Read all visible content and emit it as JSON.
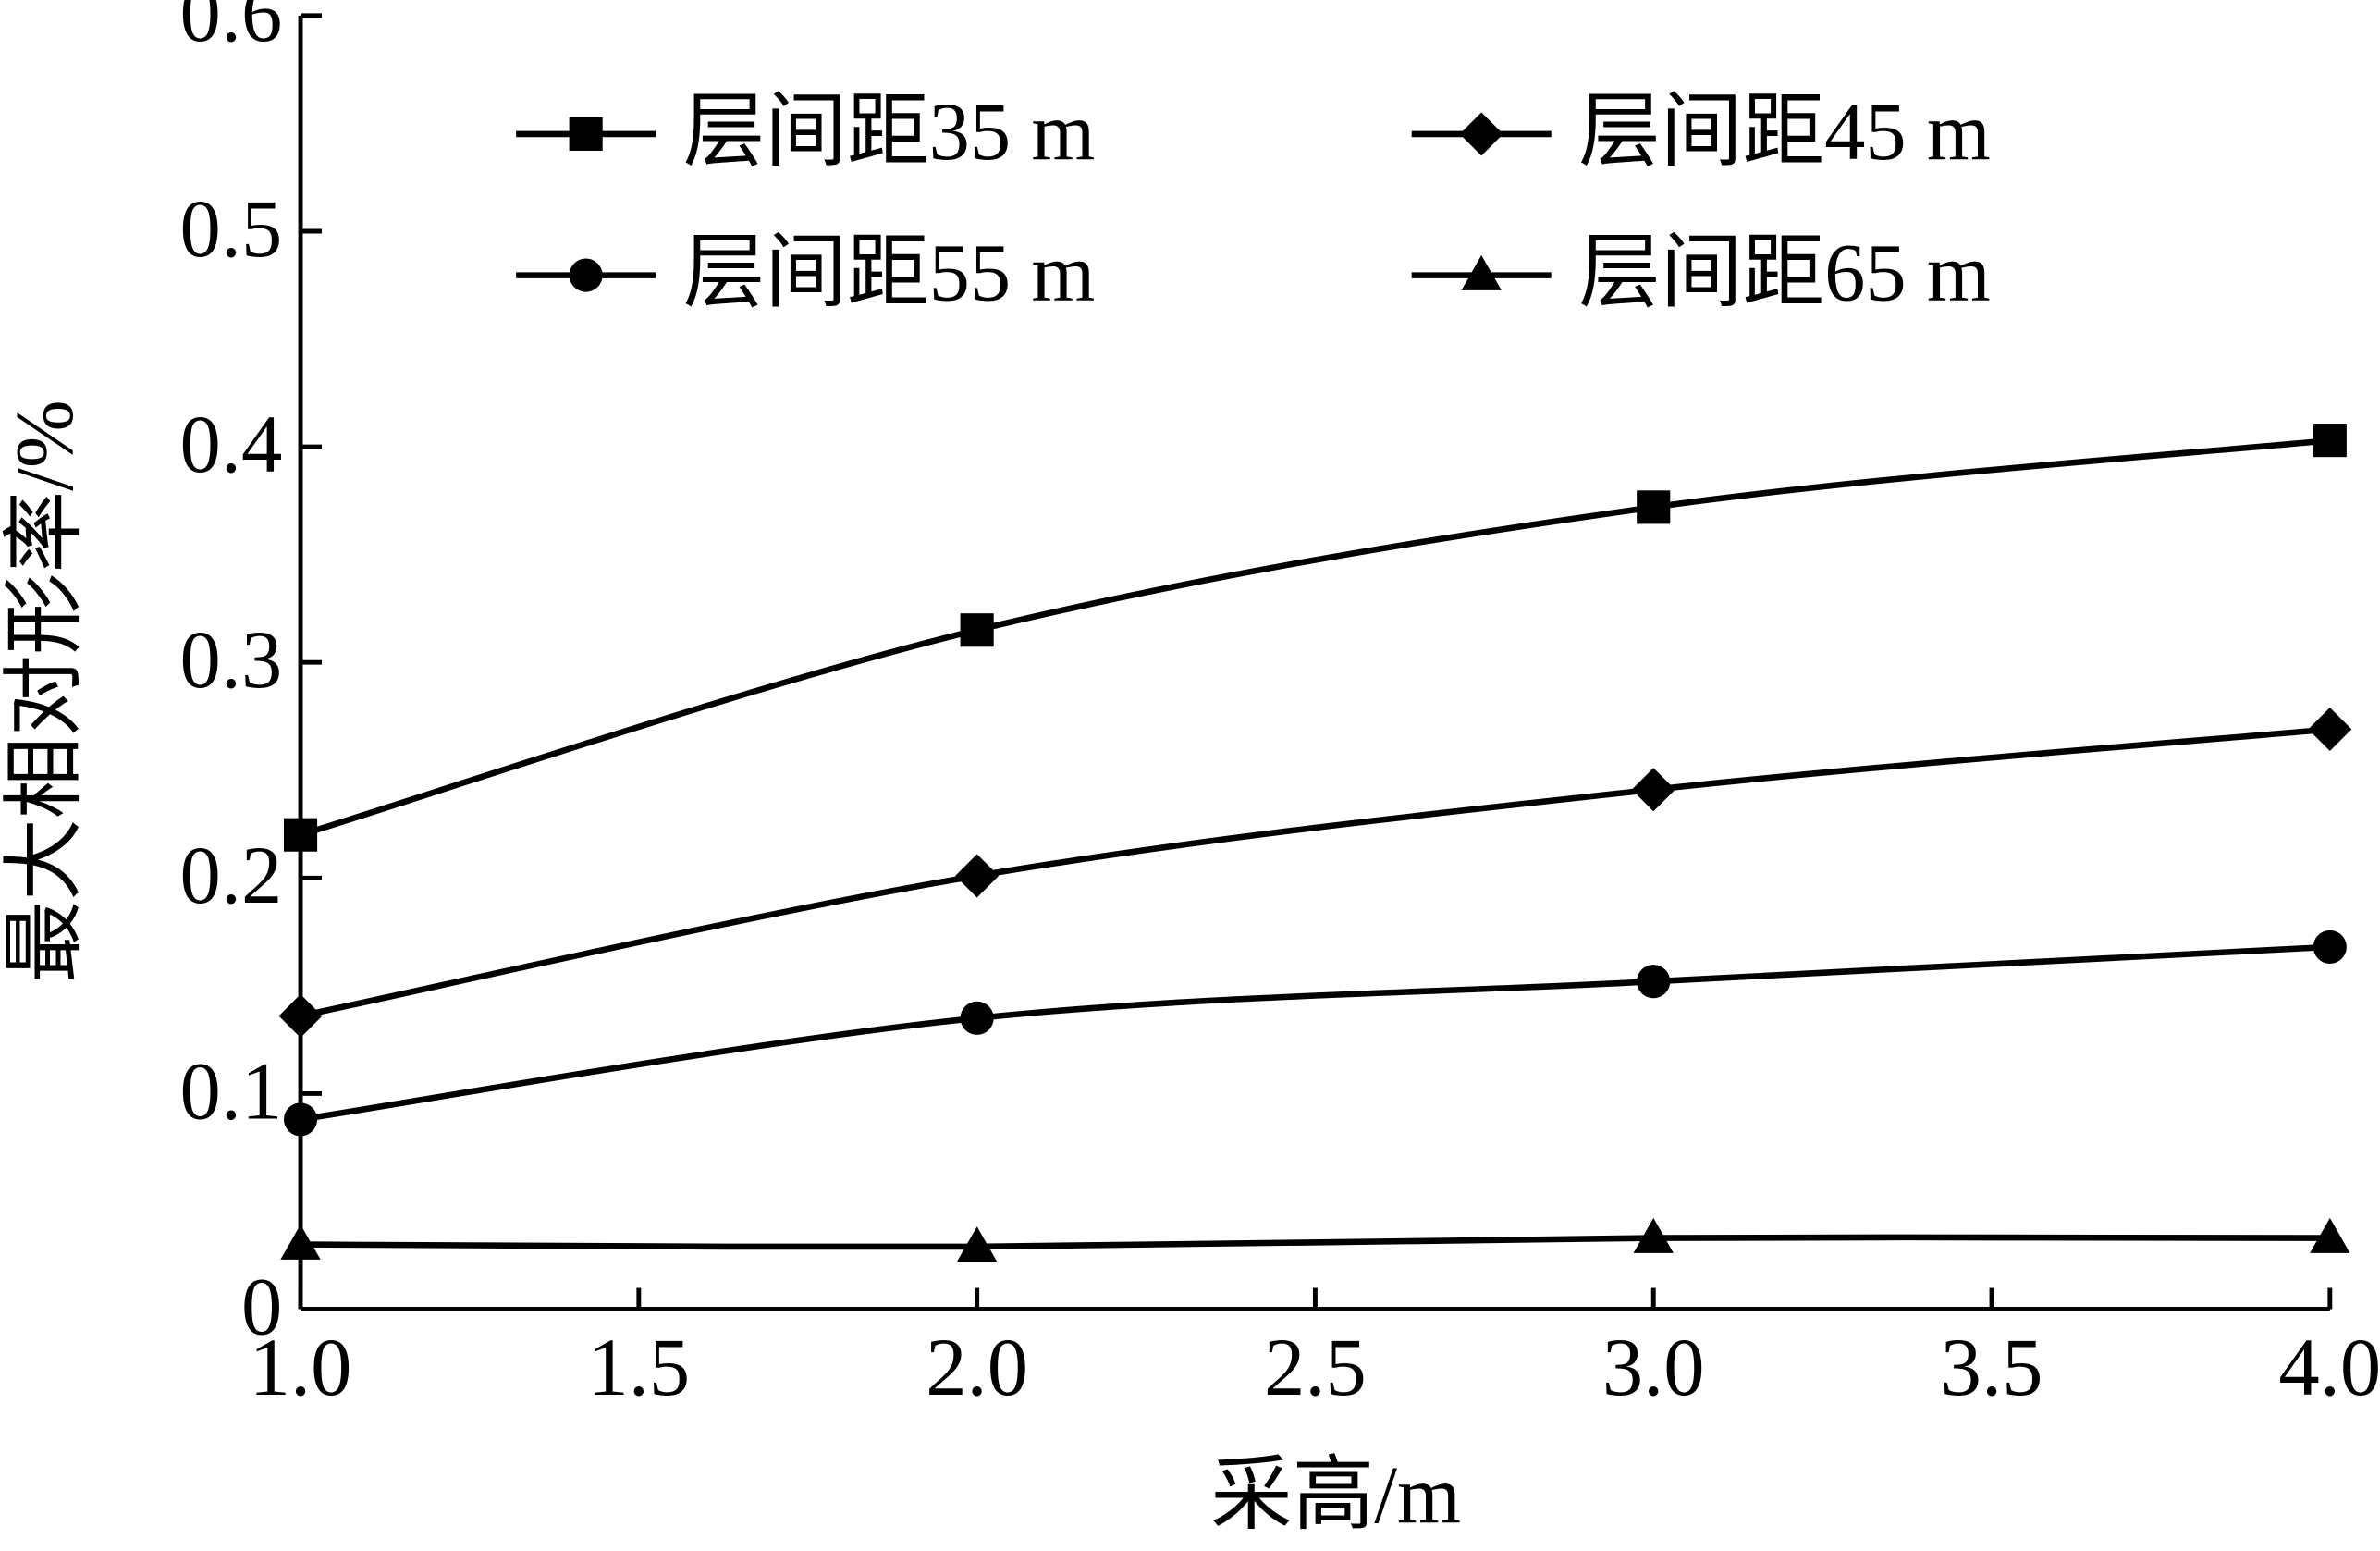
{
  "chart_data": {
    "type": "line",
    "x_label": "采高/m",
    "y_label": "最大相对形率/%",
    "x": [
      1,
      2,
      3,
      4
    ],
    "series": [
      {
        "name": "层间距35 m",
        "color": "#000000",
        "marker": "square",
        "values": [
          0.22,
          0.315,
          0.372,
          0.403
        ]
      },
      {
        "name": "层间距45 m",
        "color": "#000000",
        "marker": "diamond",
        "values": [
          0.136,
          0.201,
          0.241,
          0.269
        ]
      },
      {
        "name": "层间距55 m",
        "color": "#000000",
        "marker": "circle",
        "values": [
          0.088,
          0.135,
          0.152,
          0.168
        ]
      },
      {
        "name": "层间距65 m",
        "color": "#000000",
        "marker": "triangle",
        "values": [
          0.03,
          0.029,
          0.033,
          0.033
        ]
      }
    ],
    "xlim": [
      1,
      4
    ],
    "ylim": [
      0,
      0.6
    ],
    "xticks": [
      {
        "value": 1,
        "label": "1.0"
      },
      {
        "value": 1.5,
        "label": "1.5"
      },
      {
        "value": 2,
        "label": "2.0"
      },
      {
        "value": 2.5,
        "label": "2.5"
      },
      {
        "value": 3,
        "label": "3.0"
      },
      {
        "value": 3.5,
        "label": "3.5"
      },
      {
        "value": 4,
        "label": "4.0"
      }
    ],
    "yticks": [
      0,
      0.1,
      0.2,
      0.3,
      0.4,
      0.5,
      0.6
    ],
    "legend_position": "top"
  }
}
